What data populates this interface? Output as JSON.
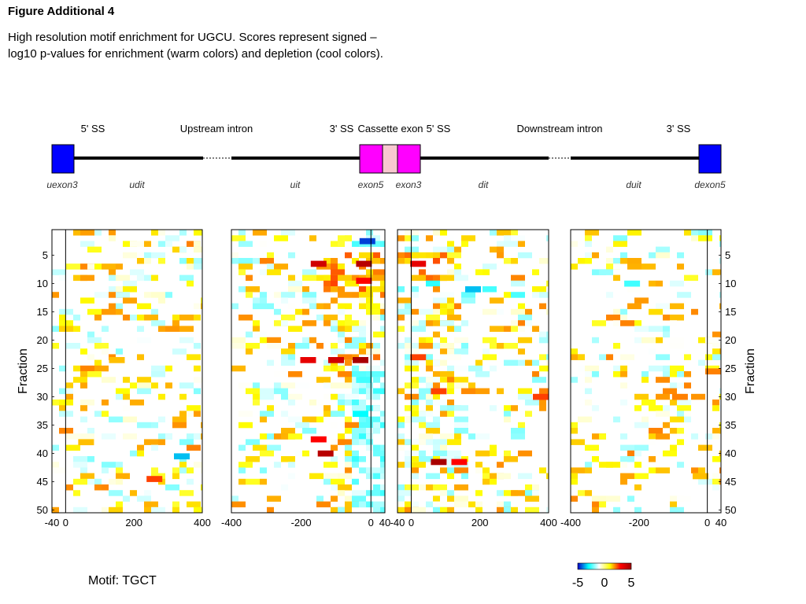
{
  "figure": {
    "title": "Figure Additional 4",
    "caption": "High resolution motif enrichment for UGCU. Scores represent signed –log10 p-values for enrichment (warm colors) and depletion (cool colors).",
    "motif_label": "Motif: TGCT"
  },
  "gene_model": {
    "top_labels": [
      "5' SS",
      "Upstream intron",
      "3' SS",
      "Cassette exon",
      "5' SS",
      "Downstream intron",
      "3' SS"
    ],
    "region_labels": [
      "uexon3",
      "udit",
      "uit",
      "exon5",
      "exon3",
      "dit",
      "duit",
      "dexon5"
    ],
    "colors": {
      "constitutive_exon": "#0000ff",
      "cassette_exon": "#ff00ff",
      "cassette_core": "#f8c8d0",
      "intron": "#000000"
    }
  },
  "chart_data": [
    {
      "type": "heatmap",
      "panel": "upstream-exon-and-intron",
      "ylabel": "Fraction",
      "xlim": [
        -40,
        400
      ],
      "x_ticks": [
        "-40",
        "0",
        "200",
        "400"
      ],
      "y_ticks": [
        "5",
        "10",
        "15",
        "20",
        "25",
        "30",
        "35",
        "40",
        "45",
        "50"
      ],
      "ylim": [
        1,
        50
      ],
      "boundary_x": 0,
      "hot_cells": [
        {
          "x": 340,
          "y": 40.5,
          "v": -3.5
        },
        {
          "x": 260,
          "y": 44.5,
          "v": 2.5
        },
        {
          "x": 150,
          "y": 23.5,
          "v": 1.5
        },
        {
          "x": 60,
          "y": 38,
          "v": 1.5
        }
      ],
      "background": "sparse low-magnitude enrichment/depletion"
    },
    {
      "type": "heatmap",
      "panel": "intron-upstream-of-cassette-exon",
      "xlim": [
        -400,
        40
      ],
      "x_ticks": [
        "-400",
        "-200",
        "0",
        "40"
      ],
      "y_ticks": [
        "5",
        "10",
        "15",
        "20",
        "25",
        "30",
        "35",
        "40",
        "45",
        "50"
      ],
      "ylim": [
        1,
        50
      ],
      "boundary_x": 0,
      "hot_cells": [
        {
          "x": -30,
          "y": 23.5,
          "v": 4.8
        },
        {
          "x": -100,
          "y": 23.5,
          "v": 4
        },
        {
          "x": -180,
          "y": 23.5,
          "v": 3.5
        },
        {
          "x": -20,
          "y": 6.5,
          "v": 4.5
        },
        {
          "x": -150,
          "y": 6.5,
          "v": 4
        },
        {
          "x": -20,
          "y": 9.5,
          "v": 3
        },
        {
          "x": -130,
          "y": 40,
          "v": 4.5
        },
        {
          "x": -150,
          "y": 37.5,
          "v": 3
        },
        {
          "x": -10,
          "y": 2.5,
          "v": -4.5
        },
        {
          "x": -30,
          "y": 33,
          "v": -3
        },
        {
          "x": -20,
          "y": 27,
          "v": -2.5
        }
      ],
      "background": "strong enrichment near 3' splice site (fractions 5-12 and 23-24), depletion columns near 0"
    },
    {
      "type": "heatmap",
      "panel": "intron-downstream-of-cassette-exon",
      "xlim": [
        -40,
        400
      ],
      "x_ticks": [
        "-40",
        "0",
        "200",
        "400"
      ],
      "y_ticks": [
        "5",
        "10",
        "15",
        "20",
        "25",
        "30",
        "35",
        "40",
        "45",
        "50"
      ],
      "ylim": [
        1,
        50
      ],
      "boundary_x": 0,
      "hot_cells": [
        {
          "x": 80,
          "y": 41.5,
          "v": 4.8
        },
        {
          "x": 140,
          "y": 41.5,
          "v": 3
        },
        {
          "x": 20,
          "y": 6.5,
          "v": 3.5
        },
        {
          "x": 180,
          "y": 11,
          "v": -3.5
        },
        {
          "x": 400,
          "y": 30,
          "v": 2.5
        },
        {
          "x": 80,
          "y": 29,
          "v": 2.5
        },
        {
          "x": 20,
          "y": 23,
          "v": 2.5
        }
      ],
      "background": "enrichment near 5' splice site (fractions 5-10), depletion rows 10-12"
    },
    {
      "type": "heatmap",
      "panel": "downstream-intron-and-exon",
      "ylabel": "Fraction",
      "xlim": [
        -400,
        40
      ],
      "x_ticks": [
        "-400",
        "-200",
        "0",
        "40"
      ],
      "y_ticks": [
        "5",
        "10",
        "15",
        "20",
        "25",
        "30",
        "35",
        "40",
        "45",
        "50"
      ],
      "ylim": [
        1,
        50
      ],
      "boundary_x": 0,
      "hot_cells": [
        {
          "x": 20,
          "y": 25.5,
          "v": 2
        },
        {
          "x": -80,
          "y": 30,
          "v": 2
        },
        {
          "x": -220,
          "y": 10,
          "v": -2.5
        },
        {
          "x": -20,
          "y": 44,
          "v": 1.5
        }
      ],
      "background": "sparse low-magnitude enrichment/depletion"
    }
  ],
  "colorbar": {
    "ticks": [
      "-5",
      "0",
      "5"
    ],
    "vmin": -5,
    "vmax": 5,
    "stops": [
      "#0000c8",
      "#00ffff",
      "#ffffff",
      "#ffff00",
      "#ff0000",
      "#a00000"
    ]
  }
}
